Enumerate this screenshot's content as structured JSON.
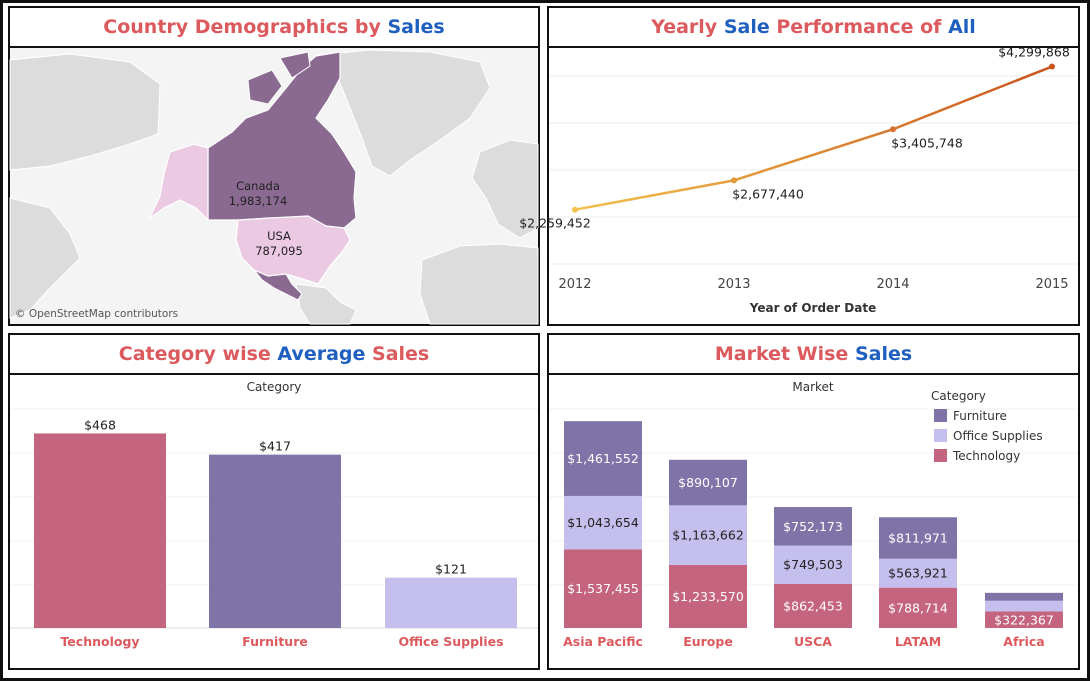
{
  "colors": {
    "title_red": "#dc5a5e",
    "title_blue": "#1f5fbf",
    "technology": "#c4647f",
    "furniture": "#8073a8",
    "office_supplies": "#c5bfee",
    "line_start": "#f2c14e",
    "line_end": "#c9541c",
    "map_canada": "#8b6a92",
    "map_usa": "#ecc9e3",
    "map_land": "#dedede"
  },
  "panels": {
    "map": {
      "title_parts": [
        {
          "text": "Country Demographics by ",
          "color": "red"
        },
        {
          "text": "Sales",
          "color": "blue"
        }
      ],
      "credit": "© OpenStreetMap contributors"
    },
    "line": {
      "title_parts": [
        {
          "text": "Yearly ",
          "color": "red"
        },
        {
          "text": "Sale",
          "color": "blue"
        },
        {
          "text": " Performance of ",
          "color": "red"
        },
        {
          "text": "All",
          "color": "blue"
        }
      ]
    },
    "category": {
      "title_parts": [
        {
          "text": "Category wise ",
          "color": "red"
        },
        {
          "text": "Average",
          "color": "blue"
        },
        {
          "text": " Sales",
          "color": "red"
        }
      ]
    },
    "market": {
      "title_parts": [
        {
          "text": "Market Wise ",
          "color": "red"
        },
        {
          "text": "Sales",
          "color": "blue"
        }
      ]
    }
  },
  "chart_data": [
    {
      "type": "map",
      "title": "Country Demographics by Sales",
      "regions": [
        {
          "name": "Canada",
          "value": 1983174,
          "label": "1,983,174"
        },
        {
          "name": "USA",
          "value": 787095,
          "label": "787,095"
        }
      ]
    },
    {
      "type": "line",
      "title": "Yearly Sale Performance of All",
      "xlabel": "Year of Order Date",
      "ylabel": "",
      "x": [
        "2012",
        "2013",
        "2014",
        "2015"
      ],
      "values": [
        2259452,
        2677440,
        3405748,
        4299868
      ],
      "labels": [
        "$2,259,452",
        "$2,677,440",
        "$3,405,748",
        "$4,299,868"
      ],
      "ylim": [
        1400000,
        4450000
      ],
      "grid": true
    },
    {
      "type": "bar",
      "title": "Category wise Average Sales",
      "header": "Category",
      "categories": [
        "Technology",
        "Furniture",
        "Office Supplies"
      ],
      "values": [
        468,
        417,
        121
      ],
      "labels": [
        "$468",
        "$417",
        "$121"
      ],
      "ylim": [
        0,
        520
      ],
      "grid": true
    },
    {
      "type": "bar",
      "stacked": true,
      "title": "Market Wise Sales",
      "header": "Market",
      "legend_title": "Category",
      "legend_position": "top-right",
      "categories": [
        "Asia Pacific",
        "Europe",
        "USCA",
        "LATAM",
        "Africa"
      ],
      "series": [
        {
          "name": "Technology",
          "values": [
            1537455,
            1233570,
            862453,
            788714,
            322367
          ],
          "labels": [
            "$1,537,455",
            "$1,233,570",
            "$862,453",
            "$788,714",
            "$322,367"
          ]
        },
        {
          "name": "Office Supplies",
          "values": [
            1043654,
            1163662,
            749503,
            563921,
            210000
          ],
          "labels": [
            "$1,043,654",
            "$1,163,662",
            "$749,503",
            "$563,921",
            ""
          ]
        },
        {
          "name": "Furniture",
          "values": [
            1461552,
            890107,
            752173,
            811971,
            155000
          ],
          "labels": [
            "$1,461,552",
            "$890,107",
            "$752,173",
            "$811,971",
            ""
          ]
        }
      ],
      "legend": [
        "Furniture",
        "Office Supplies",
        "Technology"
      ],
      "ylim": [
        0,
        4300000
      ]
    }
  ]
}
